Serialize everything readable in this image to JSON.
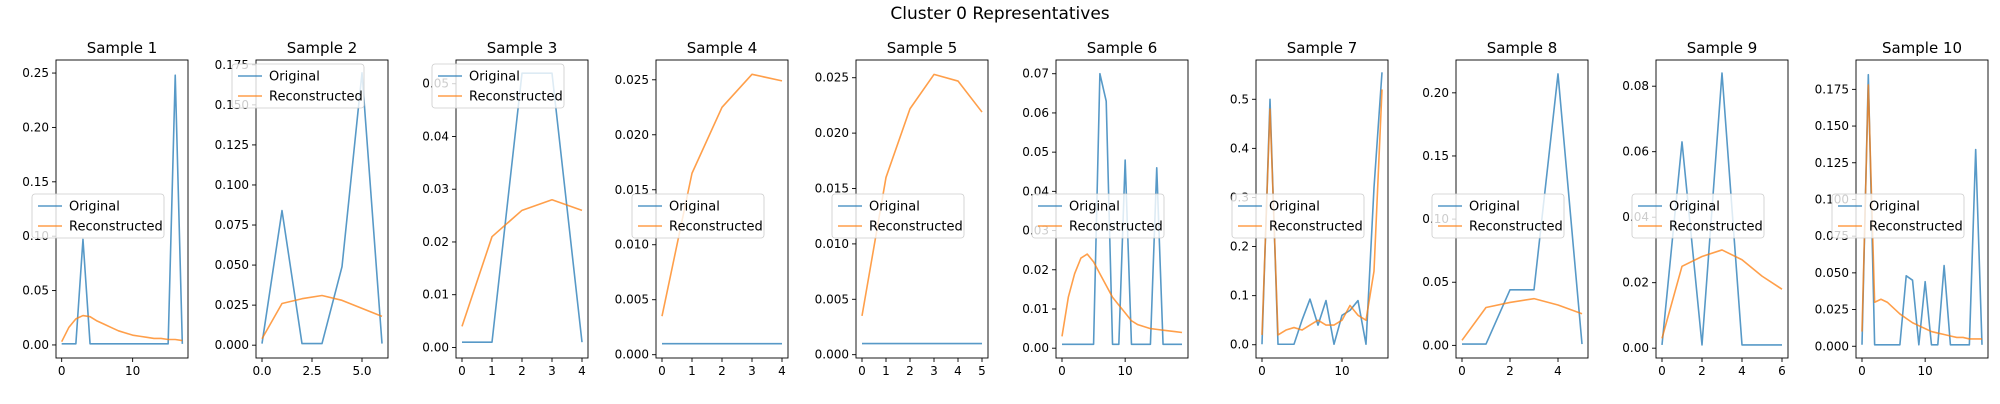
{
  "figure": {
    "title": "Cluster 0 Representatives"
  },
  "colors": {
    "original": "#1f77b4",
    "reconstructed": "#ff7f0e"
  },
  "chart_data": [
    {
      "type": "line",
      "title": "Sample 1",
      "xlim": [
        -0.8,
        17.8
      ],
      "ylim": [
        -0.012,
        0.262
      ],
      "xticks": [
        0,
        10
      ],
      "yticks": [
        0.0,
        0.05,
        0.1,
        0.15,
        0.2,
        0.25
      ],
      "xtick_labels": [
        "0",
        "10"
      ],
      "ytick_labels": [
        "0.00",
        "0.05",
        "0.10",
        "0.15",
        "0.20",
        "0.25"
      ],
      "legend": "center-left",
      "series": [
        {
          "name": "Original",
          "x": [
            0,
            1,
            2,
            3,
            4,
            5,
            6,
            7,
            8,
            9,
            10,
            11,
            12,
            13,
            14,
            15,
            16,
            17
          ],
          "values": [
            0.001,
            0.001,
            0.001,
            0.097,
            0.001,
            0.001,
            0.001,
            0.001,
            0.001,
            0.001,
            0.001,
            0.001,
            0.001,
            0.001,
            0.001,
            0.001,
            0.248,
            0.001
          ]
        },
        {
          "name": "Reconstructed",
          "x": [
            0,
            1,
            2,
            3,
            4,
            5,
            6,
            7,
            8,
            9,
            10,
            11,
            12,
            13,
            14,
            15,
            16,
            17
          ],
          "values": [
            0.003,
            0.016,
            0.024,
            0.027,
            0.026,
            0.022,
            0.019,
            0.016,
            0.013,
            0.011,
            0.009,
            0.008,
            0.007,
            0.006,
            0.006,
            0.005,
            0.005,
            0.004
          ]
        }
      ]
    },
    {
      "type": "line",
      "title": "Sample 2",
      "xlim": [
        -0.3,
        6.3
      ],
      "ylim": [
        -0.008,
        0.178
      ],
      "xticks": [
        0,
        2.5,
        5
      ],
      "yticks": [
        0.0,
        0.025,
        0.05,
        0.075,
        0.1,
        0.125,
        0.15,
        0.175
      ],
      "xtick_labels": [
        "0.0",
        "2.5",
        "5.0"
      ],
      "ytick_labels": [
        "0.000",
        "0.025",
        "0.050",
        "0.075",
        "0.100",
        "0.125",
        "0.150",
        "0.175"
      ],
      "legend": "upper-left",
      "series": [
        {
          "name": "Original",
          "x": [
            0,
            1,
            2,
            3,
            4,
            5,
            6
          ],
          "values": [
            0.001,
            0.084,
            0.001,
            0.001,
            0.049,
            0.17,
            0.001
          ]
        },
        {
          "name": "Reconstructed",
          "x": [
            0,
            1,
            2,
            3,
            4,
            5,
            6
          ],
          "values": [
            0.004,
            0.026,
            0.029,
            0.031,
            0.028,
            0.023,
            0.018
          ]
        }
      ]
    },
    {
      "type": "line",
      "title": "Sample 3",
      "xlim": [
        -0.2,
        4.2
      ],
      "ylim": [
        -0.002,
        0.0545
      ],
      "xticks": [
        0,
        1,
        2,
        3,
        4
      ],
      "yticks": [
        0.0,
        0.01,
        0.02,
        0.03,
        0.04,
        0.05
      ],
      "xtick_labels": [
        "0",
        "1",
        "2",
        "3",
        "4"
      ],
      "ytick_labels": [
        "0.00",
        "0.01",
        "0.02",
        "0.03",
        "0.04",
        "0.05"
      ],
      "legend": "upper-left",
      "series": [
        {
          "name": "Original",
          "x": [
            0,
            1,
            2,
            3,
            4
          ],
          "values": [
            0.001,
            0.001,
            0.052,
            0.052,
            0.001
          ]
        },
        {
          "name": "Reconstructed",
          "x": [
            0,
            1,
            2,
            3,
            4
          ],
          "values": [
            0.004,
            0.021,
            0.026,
            0.028,
            0.026
          ]
        }
      ]
    },
    {
      "type": "line",
      "title": "Sample 4",
      "xlim": [
        -0.2,
        4.2
      ],
      "ylim": [
        -0.0003,
        0.0268
      ],
      "xticks": [
        0,
        1,
        2,
        3,
        4
      ],
      "yticks": [
        0.0,
        0.005,
        0.01,
        0.015,
        0.02,
        0.025
      ],
      "xtick_labels": [
        "0",
        "1",
        "2",
        "3",
        "4"
      ],
      "ytick_labels": [
        "0.000",
        "0.005",
        "0.010",
        "0.015",
        "0.020",
        "0.025"
      ],
      "legend": "center-left",
      "series": [
        {
          "name": "Original",
          "x": [
            0,
            1,
            2,
            3,
            4
          ],
          "values": [
            0.001,
            0.001,
            0.001,
            0.001,
            0.001
          ]
        },
        {
          "name": "Reconstructed",
          "x": [
            0,
            1,
            2,
            3,
            4
          ],
          "values": [
            0.0035,
            0.0165,
            0.0225,
            0.0255,
            0.0249
          ]
        }
      ]
    },
    {
      "type": "line",
      "title": "Sample 5",
      "xlim": [
        -0.25,
        5.25
      ],
      "ylim": [
        -0.0003,
        0.0266
      ],
      "xticks": [
        0,
        1,
        2,
        3,
        4,
        5
      ],
      "yticks": [
        0.0,
        0.005,
        0.01,
        0.015,
        0.02,
        0.025
      ],
      "xtick_labels": [
        "0",
        "1",
        "2",
        "3",
        "4",
        "5"
      ],
      "ytick_labels": [
        "0.000",
        "0.005",
        "0.010",
        "0.015",
        "0.020",
        "0.025"
      ],
      "legend": "center-left",
      "series": [
        {
          "name": "Original",
          "x": [
            0,
            1,
            2,
            3,
            4,
            5
          ],
          "values": [
            0.001,
            0.001,
            0.001,
            0.001,
            0.001,
            0.001
          ]
        },
        {
          "name": "Reconstructed",
          "x": [
            0,
            1,
            2,
            3,
            4,
            5
          ],
          "values": [
            0.0035,
            0.016,
            0.0222,
            0.0253,
            0.0247,
            0.0219
          ]
        }
      ]
    },
    {
      "type": "line",
      "title": "Sample 6",
      "xlim": [
        -0.95,
        19.95
      ],
      "ylim": [
        -0.0025,
        0.0735
      ],
      "xticks": [
        0,
        10
      ],
      "yticks": [
        0.0,
        0.01,
        0.02,
        0.03,
        0.04,
        0.05,
        0.06,
        0.07
      ],
      "xtick_labels": [
        "0",
        "10"
      ],
      "ytick_labels": [
        "0.00",
        "0.01",
        "0.02",
        "0.03",
        "0.04",
        "0.05",
        "0.06",
        "0.07"
      ],
      "legend": "center-left",
      "series": [
        {
          "name": "Original",
          "x": [
            0,
            1,
            2,
            3,
            4,
            5,
            6,
            7,
            8,
            9,
            10,
            11,
            12,
            13,
            14,
            15,
            16,
            17,
            18,
            19
          ],
          "values": [
            0.001,
            0.001,
            0.001,
            0.001,
            0.001,
            0.001,
            0.07,
            0.063,
            0.001,
            0.001,
            0.048,
            0.001,
            0.001,
            0.001,
            0.001,
            0.046,
            0.001,
            0.001,
            0.001,
            0.001
          ]
        },
        {
          "name": "Reconstructed",
          "x": [
            0,
            1,
            2,
            3,
            4,
            5,
            6,
            7,
            8,
            9,
            10,
            11,
            12,
            13,
            14,
            15,
            16,
            17,
            18,
            19
          ],
          "values": [
            0.003,
            0.013,
            0.019,
            0.023,
            0.024,
            0.022,
            0.019,
            0.016,
            0.013,
            0.011,
            0.009,
            0.007,
            0.006,
            0.0055,
            0.005,
            0.0048,
            0.0046,
            0.0044,
            0.0042,
            0.004
          ]
        }
      ]
    },
    {
      "type": "line",
      "title": "Sample 7",
      "xlim": [
        -0.75,
        15.75
      ],
      "ylim": [
        -0.027,
        0.58
      ],
      "xticks": [
        0,
        10
      ],
      "yticks": [
        0.0,
        0.1,
        0.2,
        0.3,
        0.4,
        0.5
      ],
      "xtick_labels": [
        "0",
        "10"
      ],
      "ytick_labels": [
        "0.0",
        "0.1",
        "0.2",
        "0.3",
        "0.4",
        "0.5"
      ],
      "legend": "center-left",
      "series": [
        {
          "name": "Original",
          "x": [
            0,
            1,
            2,
            3,
            4,
            5,
            6,
            7,
            8,
            9,
            10,
            11,
            12,
            13,
            14,
            15
          ],
          "values": [
            0.001,
            0.5,
            0.001,
            0.001,
            0.001,
            0.05,
            0.093,
            0.04,
            0.09,
            0.001,
            0.06,
            0.07,
            0.09,
            0.001,
            0.32,
            0.555
          ]
        },
        {
          "name": "Reconstructed",
          "x": [
            0,
            1,
            2,
            3,
            4,
            5,
            6,
            7,
            8,
            9,
            10,
            11,
            12,
            13,
            14,
            15
          ],
          "values": [
            0.02,
            0.48,
            0.02,
            0.03,
            0.035,
            0.03,
            0.04,
            0.05,
            0.04,
            0.04,
            0.05,
            0.08,
            0.06,
            0.05,
            0.15,
            0.52
          ]
        }
      ]
    },
    {
      "type": "line",
      "title": "Sample 8",
      "xlim": [
        -0.25,
        5.25
      ],
      "ylim": [
        -0.01,
        0.226
      ],
      "xticks": [
        0,
        2,
        4
      ],
      "yticks": [
        0.0,
        0.05,
        0.1,
        0.15,
        0.2
      ],
      "xtick_labels": [
        "0",
        "2",
        "4"
      ],
      "ytick_labels": [
        "0.00",
        "0.05",
        "0.10",
        "0.15",
        "0.20"
      ],
      "legend": "center-left",
      "series": [
        {
          "name": "Original",
          "x": [
            0,
            1,
            2,
            3,
            4,
            5
          ],
          "values": [
            0.001,
            0.001,
            0.044,
            0.044,
            0.215,
            0.001
          ]
        },
        {
          "name": "Reconstructed",
          "x": [
            0,
            1,
            2,
            3,
            4,
            5
          ],
          "values": [
            0.004,
            0.03,
            0.034,
            0.037,
            0.032,
            0.025
          ]
        }
      ]
    },
    {
      "type": "line",
      "title": "Sample 9",
      "xlim": [
        -0.3,
        6.3
      ],
      "ylim": [
        -0.003,
        0.088
      ],
      "xticks": [
        0,
        2,
        4,
        6
      ],
      "yticks": [
        0.0,
        0.02,
        0.04,
        0.06,
        0.08
      ],
      "xtick_labels": [
        "0",
        "2",
        "4",
        "6"
      ],
      "ytick_labels": [
        "0.00",
        "0.02",
        "0.04",
        "0.06",
        "0.08"
      ],
      "legend": "center-left",
      "series": [
        {
          "name": "Original",
          "x": [
            0,
            1,
            2,
            3,
            4,
            5,
            6
          ],
          "values": [
            0.001,
            0.063,
            0.001,
            0.084,
            0.001,
            0.001,
            0.001
          ]
        },
        {
          "name": "Reconstructed",
          "x": [
            0,
            1,
            2,
            3,
            4,
            5,
            6
          ],
          "values": [
            0.003,
            0.025,
            0.028,
            0.03,
            0.027,
            0.022,
            0.018
          ]
        }
      ]
    },
    {
      "type": "line",
      "title": "Sample 10",
      "xlim": [
        -0.95,
        19.95
      ],
      "ylim": [
        -0.008,
        0.195
      ],
      "xticks": [
        0,
        10
      ],
      "yticks": [
        0.0,
        0.025,
        0.05,
        0.075,
        0.1,
        0.125,
        0.15,
        0.175
      ],
      "xtick_labels": [
        "0",
        "10"
      ],
      "ytick_labels": [
        "0.000",
        "0.025",
        "0.050",
        "0.075",
        "0.100",
        "0.125",
        "0.150",
        "0.175"
      ],
      "legend": "center-left",
      "series": [
        {
          "name": "Original",
          "x": [
            0,
            1,
            2,
            3,
            4,
            5,
            6,
            7,
            8,
            9,
            10,
            11,
            12,
            13,
            14,
            15,
            16,
            17,
            18,
            19
          ],
          "values": [
            0.001,
            0.185,
            0.001,
            0.001,
            0.001,
            0.001,
            0.001,
            0.048,
            0.045,
            0.001,
            0.044,
            0.001,
            0.001,
            0.055,
            0.001,
            0.001,
            0.001,
            0.001,
            0.134,
            0.001
          ]
        },
        {
          "name": "Reconstructed",
          "x": [
            0,
            1,
            2,
            3,
            4,
            5,
            6,
            7,
            8,
            9,
            10,
            11,
            12,
            13,
            14,
            15,
            16,
            17,
            18,
            19
          ],
          "values": [
            0.01,
            0.178,
            0.03,
            0.032,
            0.03,
            0.026,
            0.022,
            0.019,
            0.016,
            0.014,
            0.012,
            0.01,
            0.009,
            0.008,
            0.007,
            0.006,
            0.006,
            0.005,
            0.005,
            0.005
          ]
        }
      ]
    }
  ]
}
